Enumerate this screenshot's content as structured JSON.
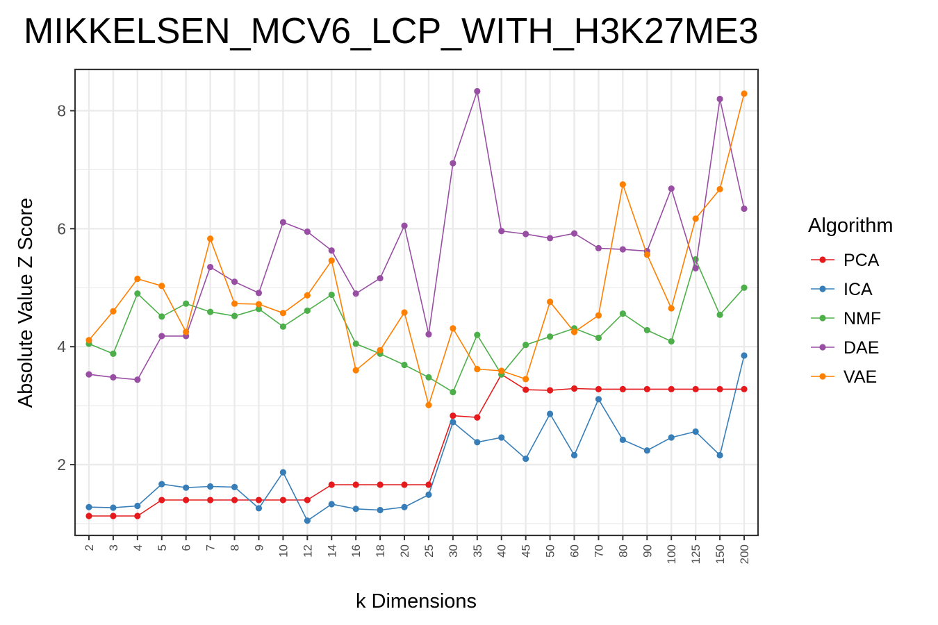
{
  "chart_data": {
    "type": "line",
    "title": "MIKKELSEN_MCV6_LCP_WITH_H3K27ME3",
    "xlabel": "k Dimensions",
    "ylabel": "Absolute Value Z Score",
    "categories": [
      "2",
      "3",
      "4",
      "5",
      "6",
      "7",
      "8",
      "9",
      "10",
      "12",
      "14",
      "16",
      "18",
      "20",
      "25",
      "30",
      "35",
      "40",
      "45",
      "50",
      "60",
      "70",
      "80",
      "90",
      "100",
      "125",
      "150",
      "200"
    ],
    "y_ticks": [
      2,
      4,
      6,
      8
    ],
    "ylim": [
      0.8,
      8.7
    ],
    "grid": true,
    "legend": {
      "title": "Algorithm",
      "position": "right"
    },
    "series": [
      {
        "name": "PCA",
        "color": "#e41a1c",
        "values": [
          1.13,
          1.13,
          1.13,
          1.4,
          1.4,
          1.4,
          1.4,
          1.4,
          1.4,
          1.4,
          1.66,
          1.66,
          1.66,
          1.66,
          1.66,
          2.83,
          2.8,
          3.53,
          3.27,
          3.26,
          3.29,
          3.28,
          3.28,
          3.28,
          3.28,
          3.28,
          3.28,
          3.28
        ]
      },
      {
        "name": "ICA",
        "color": "#377eb8",
        "values": [
          1.28,
          1.27,
          1.3,
          1.67,
          1.61,
          1.63,
          1.62,
          1.26,
          1.87,
          1.05,
          1.33,
          1.25,
          1.23,
          1.28,
          1.49,
          2.72,
          2.38,
          2.46,
          2.1,
          2.86,
          2.16,
          3.11,
          2.42,
          2.24,
          2.46,
          2.56,
          2.16,
          3.85
        ]
      },
      {
        "name": "NMF",
        "color": "#4daf4a",
        "values": [
          4.05,
          3.88,
          4.9,
          4.51,
          4.73,
          4.59,
          4.52,
          4.64,
          4.34,
          4.61,
          4.88,
          4.05,
          3.88,
          3.69,
          3.48,
          3.23,
          4.2,
          3.53,
          4.03,
          4.17,
          4.31,
          4.15,
          4.56,
          4.28,
          4.09,
          5.48,
          4.54,
          5.0
        ]
      },
      {
        "name": "DAE",
        "color": "#984ea3",
        "values": [
          3.53,
          3.48,
          3.44,
          4.18,
          4.18,
          5.35,
          5.1,
          4.91,
          6.11,
          5.95,
          5.63,
          4.9,
          5.16,
          6.05,
          4.21,
          7.11,
          8.33,
          5.96,
          5.91,
          5.84,
          5.92,
          5.67,
          5.65,
          5.62,
          6.68,
          5.33,
          8.2,
          6.34
        ]
      },
      {
        "name": "VAE",
        "color": "#ff7f00",
        "values": [
          4.11,
          4.6,
          5.15,
          5.03,
          4.25,
          5.83,
          4.73,
          4.72,
          4.57,
          4.87,
          5.46,
          3.6,
          3.94,
          4.58,
          3.01,
          4.31,
          3.62,
          3.59,
          3.45,
          4.76,
          4.25,
          4.53,
          6.75,
          5.56,
          4.65,
          6.17,
          6.67,
          8.29
        ]
      }
    ]
  }
}
